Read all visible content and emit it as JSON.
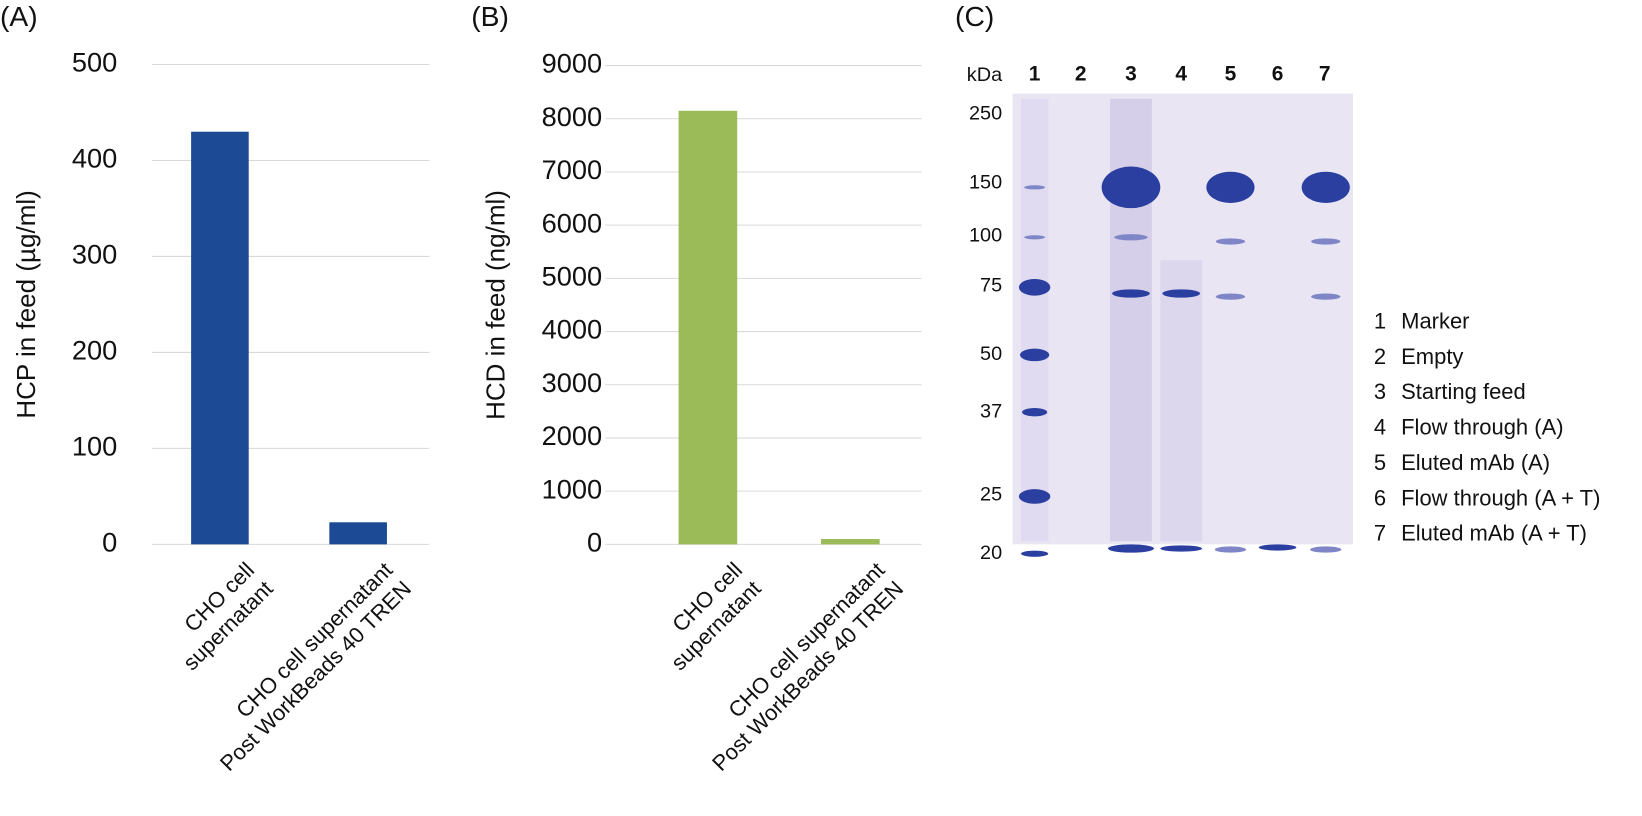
{
  "chart_data": [
    {
      "type": "bar",
      "panel": "(A)",
      "y_label": "HCP in feed (µg/ml)",
      "categories": [
        "CHO cell\nsupernatant",
        "CHO cell supernatant\nPost WorkBeads 40 TREN"
      ],
      "values": [
        430,
        23
      ],
      "color": "#1c4a94",
      "ylim": [
        0,
        500
      ],
      "yticks": [
        0,
        100,
        200,
        300,
        400,
        500
      ],
      "grid": true
    },
    {
      "type": "bar",
      "panel": "(B)",
      "y_label": "HCD in feed (ng/ml)",
      "categories": [
        "CHO cell\nsupernatant",
        "CHO cell supernatant\nPost WorkBeads 40 TREN"
      ],
      "values": [
        8150,
        100
      ],
      "color": "#9bbb59",
      "ylim": [
        0,
        9000
      ],
      "yticks": [
        0,
        1000,
        2000,
        3000,
        4000,
        5000,
        6000,
        7000,
        8000,
        9000
      ],
      "grid": true
    }
  ],
  "gel": {
    "panel": "(C)",
    "unit": "kDa",
    "lanes": [
      "1",
      "2",
      "3",
      "4",
      "5",
      "6",
      "7"
    ],
    "markers": [
      "250",
      "150",
      "100",
      "75",
      "50",
      "37",
      "25",
      "20"
    ],
    "legend": [
      {
        "num": "1",
        "label": "Marker"
      },
      {
        "num": "2",
        "label": "Empty"
      },
      {
        "num": "3",
        "label": "Starting feed"
      },
      {
        "num": "4",
        "label": "Flow through (A)"
      },
      {
        "num": "5",
        "label": "Eluted mAb (A)"
      },
      {
        "num": "6",
        "label": "Flow through (A + T)"
      },
      {
        "num": "7",
        "label": "Eluted mAb (A + T)"
      }
    ]
  }
}
